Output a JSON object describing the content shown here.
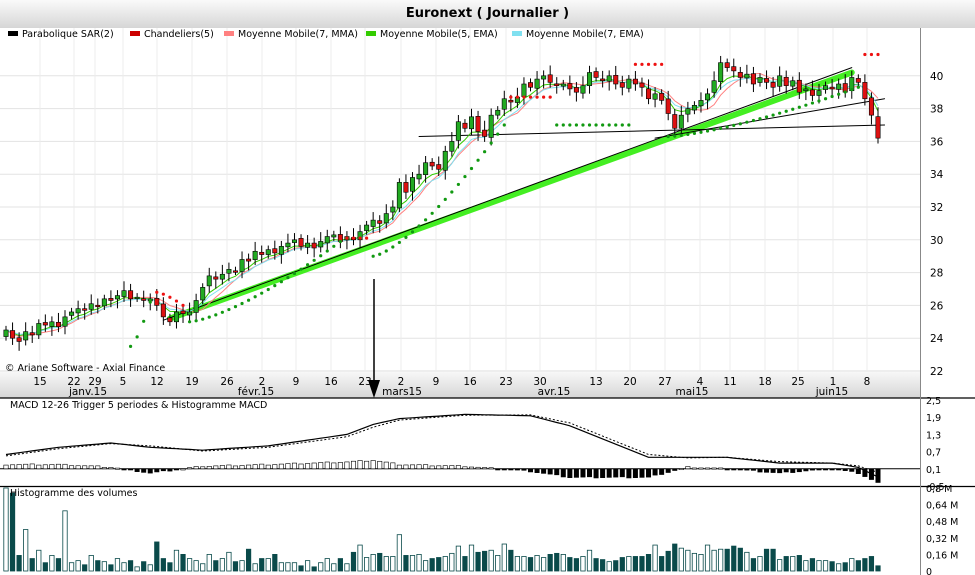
{
  "header": {
    "title": "Euronext  ( Journalier )"
  },
  "watermark": "© Ariane Software - Axial Finance",
  "legend": [
    {
      "label": "Parabolique SAR(2)",
      "color": "#000000"
    },
    {
      "label": "Chandeliers(5)",
      "color": "#cc0000"
    },
    {
      "label": "Moyenne Mobile(7, MMA)",
      "color": "#ff8080"
    },
    {
      "label": "Moyenne Mobile(5, EMA)",
      "color": "#33cc00"
    },
    {
      "label": "Moyenne Mobile(7, EMA)",
      "color": "#80e0f0"
    }
  ],
  "chart_data": [
    {
      "type": "candlestick",
      "title": "Euronext  ( Journalier )",
      "ylim": [
        22,
        42
      ],
      "yticks": [
        "22",
        "24",
        "26",
        "28",
        "30",
        "32",
        "34",
        "36",
        "38",
        "40"
      ],
      "xticks": [
        "15",
        "22",
        "29",
        "5",
        "12",
        "19",
        "26",
        "2",
        "9",
        "16",
        "23",
        "2",
        "9",
        "16",
        "23",
        "30",
        "13",
        "20",
        "27",
        "4",
        "11",
        "18",
        "25",
        "1",
        "8"
      ],
      "month_labels": [
        "janv.15",
        "févr.15",
        "mars15",
        "avr.15",
        "mai15",
        "juin15"
      ],
      "close": [
        24.5,
        24.0,
        23.8,
        24.4,
        24.2,
        24.9,
        24.8,
        25.0,
        24.7,
        25.3,
        25.6,
        25.8,
        25.7,
        26.1,
        26.0,
        26.4,
        26.3,
        26.6,
        26.9,
        26.4,
        26.5,
        26.3,
        26.4,
        26.0,
        25.3,
        25.0,
        25.6,
        25.5,
        25.6,
        26.3,
        27.1,
        27.8,
        27.6,
        27.9,
        28.2,
        28.1,
        28.8,
        28.7,
        29.3,
        29.1,
        29.4,
        29.2,
        29.6,
        29.8,
        30.0,
        29.6,
        29.8,
        29.5,
        29.9,
        30.2,
        30.3,
        29.9,
        30.2,
        30.0,
        30.5,
        30.9,
        31.2,
        31.0,
        31.6,
        32.0,
        33.5,
        32.9,
        33.8,
        34.0,
        34.7,
        34.5,
        34.3,
        35.4,
        36.0,
        37.2,
        36.8,
        37.5,
        36.6,
        36.3,
        37.6,
        37.9,
        38.6,
        38.4,
        38.7,
        39.5,
        39.3,
        39.8,
        40.0,
        39.6,
        39.4,
        39.5,
        39.2,
        39.0,
        39.4,
        40.2,
        39.9,
        39.7,
        40.0,
        39.5,
        39.3,
        39.8,
        39.5,
        39.3,
        38.6,
        38.9,
        38.5,
        37.7,
        36.8,
        37.6,
        38.0,
        38.2,
        38.5,
        38.9,
        39.7,
        40.8,
        40.5,
        40.3,
        39.9,
        40.1,
        39.5,
        39.9,
        39.6,
        39.3,
        40.0,
        39.4,
        39.7,
        39.0,
        39.2,
        38.8,
        39.1,
        39.4,
        39.2,
        39.5,
        39.0,
        39.9,
        39.6,
        38.6,
        37.6,
        36.2
      ],
      "psar": [
        {
          "x": 19,
          "side": "below",
          "start": 23.5,
          "end": 26.2
        },
        {
          "x": 23,
          "side": "above",
          "start": 26.8,
          "end": 26.0
        },
        {
          "x": 28,
          "side": "below",
          "start": 25.0,
          "end": 29.9
        },
        {
          "x": 52,
          "side": "above",
          "start": 30.1,
          "end": 30.1
        },
        {
          "x": 56,
          "side": "below",
          "start": 29.0,
          "end": 37.0
        },
        {
          "x": 77,
          "side": "above",
          "start": 38.7,
          "end": 38.7
        },
        {
          "x": 84,
          "side": "below",
          "start": 37.0,
          "end": 37.0
        },
        {
          "x": 96,
          "side": "above",
          "start": 40.7,
          "end": 40.7
        },
        {
          "x": 101,
          "side": "below",
          "start": 36.3,
          "end": 39.3
        },
        {
          "x": 131,
          "side": "above",
          "start": 41.3,
          "end": 41.3
        }
      ],
      "trendlines": [
        {
          "name": "",
          "x1": 25,
          "y1": 25.2,
          "x2": 129,
          "y2": 40.2
        },
        {
          "name": "",
          "x1": 24,
          "y1": 25.1,
          "x2": 129,
          "y2": 40.5
        },
        {
          "name": "",
          "x1": 63,
          "y1": 36.3,
          "x2": 134,
          "y2": 37.0
        },
        {
          "name": "",
          "x1": 99,
          "y1": 36.2,
          "x2": 134,
          "y2": 38.6
        }
      ]
    },
    {
      "type": "line",
      "title": "MACD 12-26  Trigger 5 periodes & Histogramme MACD",
      "ylim": [
        -0.5,
        2.5
      ],
      "yticks": [
        "2,5",
        "1,9",
        "1,3",
        "0,7",
        "0,1",
        "-0,5"
      ],
      "series": [
        {
          "name": "MACD 12-26",
          "x": [
            0,
            8,
            16,
            22,
            30,
            40,
            52,
            56,
            60,
            70,
            80,
            86,
            92,
            98,
            104,
            110,
            118,
            126,
            130,
            134
          ],
          "values": [
            0.6,
            0.85,
            1.0,
            0.85,
            0.75,
            0.9,
            1.3,
            1.65,
            1.85,
            2.0,
            1.95,
            1.6,
            1.05,
            0.5,
            0.5,
            0.5,
            0.3,
            0.3,
            0.15,
            -0.3
          ]
        },
        {
          "name": "Trigger 5 periodes",
          "x": [
            0,
            8,
            16,
            22,
            30,
            40,
            52,
            56,
            60,
            70,
            80,
            86,
            92,
            98,
            104,
            110,
            118,
            126,
            130,
            134
          ],
          "values": [
            0.55,
            0.8,
            0.98,
            0.9,
            0.72,
            0.85,
            1.22,
            1.55,
            1.8,
            1.97,
            1.98,
            1.7,
            1.15,
            0.6,
            0.48,
            0.5,
            0.35,
            0.3,
            0.2,
            -0.1
          ]
        }
      ]
    },
    {
      "type": "bar",
      "title": "Histogramme des volumes",
      "ylim": [
        0,
        0.8
      ],
      "yticks": [
        "0,8 M",
        "0,64 M",
        "0,48 M",
        "0,32 M",
        "0,16 M",
        "0"
      ],
      "values": [
        0.8,
        0.75,
        0.15,
        0.4,
        0.12,
        0.2,
        0.08,
        0.15,
        0.12,
        0.58,
        0.08,
        0.1,
        0.06,
        0.15,
        0.1,
        0.09,
        0.06,
        0.12,
        0.08,
        0.1,
        0.04,
        0.09,
        0.06,
        0.28,
        0.12,
        0.08,
        0.2,
        0.16,
        0.12,
        0.1,
        0.07,
        0.16,
        0.1,
        0.12,
        0.18,
        0.09,
        0.1,
        0.21,
        0.07,
        0.12,
        0.12,
        0.16,
        0.08,
        0.08,
        0.08,
        0.05,
        0.1,
        0.04,
        0.08,
        0.12,
        0.07,
        0.12,
        0.07,
        0.18,
        0.25,
        0.13,
        0.16,
        0.17,
        0.14,
        0.14,
        0.35,
        0.15,
        0.15,
        0.16,
        0.1,
        0.12,
        0.13,
        0.14,
        0.17,
        0.24,
        0.14,
        0.25,
        0.18,
        0.19,
        0.2,
        0.15,
        0.26,
        0.2,
        0.14,
        0.14,
        0.13,
        0.15,
        0.13,
        0.16,
        0.17,
        0.16,
        0.13,
        0.12,
        0.14,
        0.2,
        0.12,
        0.11,
        0.09,
        0.1,
        0.13,
        0.14,
        0.14,
        0.14,
        0.16,
        0.25,
        0.14,
        0.19,
        0.26,
        0.22,
        0.2,
        0.17,
        0.16,
        0.25,
        0.2,
        0.21,
        0.21,
        0.24,
        0.22,
        0.18,
        0.12,
        0.14,
        0.21,
        0.21,
        0.11,
        0.14,
        0.14,
        0.15,
        0.1,
        0.12,
        0.1,
        0.1,
        0.09,
        0.07,
        0.08,
        0.12,
        0.1,
        0.12,
        0.14,
        0.05
      ]
    }
  ]
}
